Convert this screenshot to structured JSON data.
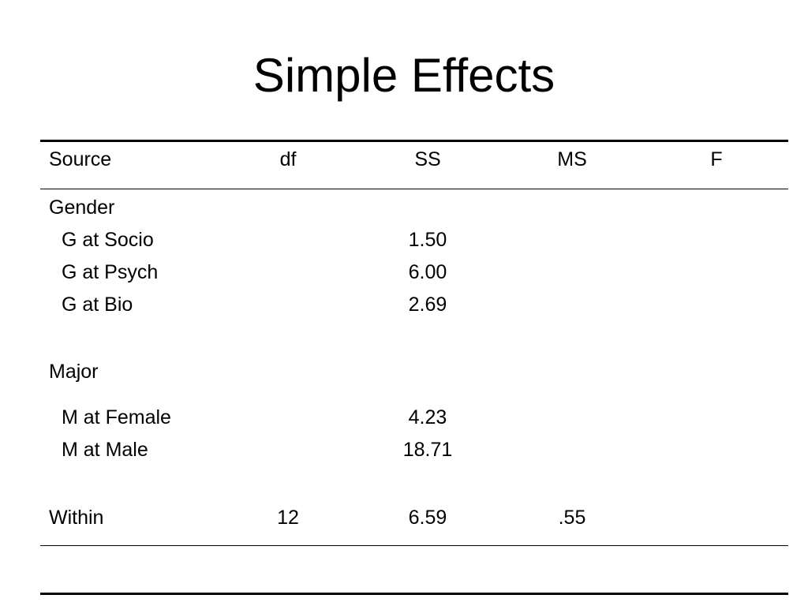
{
  "title": "Simple Effects",
  "headers": {
    "source": "Source",
    "df": "df",
    "ss": "SS",
    "ms": "MS",
    "f": "F"
  },
  "rows": [
    {
      "source": "Gender",
      "df": "",
      "ss": "",
      "ms": "",
      "f": ""
    },
    {
      "source": "G at Socio",
      "df": "",
      "ss": "1.50",
      "ms": "",
      "f": ""
    },
    {
      "source": "G at Psych",
      "df": "",
      "ss": "6.00",
      "ms": "",
      "f": ""
    },
    {
      "source": "G at Bio",
      "df": "",
      "ss": "2.69",
      "ms": "",
      "f": ""
    },
    {
      "source": "Major",
      "df": "",
      "ss": "",
      "ms": "",
      "f": ""
    },
    {
      "source": "M at Female",
      "df": "",
      "ss": "4.23",
      "ms": "",
      "f": ""
    },
    {
      "source": "M at Male",
      "df": "",
      "ss": "18.71",
      "ms": "",
      "f": ""
    },
    {
      "source": "Within",
      "df": "12",
      "ss": "6.59",
      "ms": ".55",
      "f": ""
    }
  ]
}
